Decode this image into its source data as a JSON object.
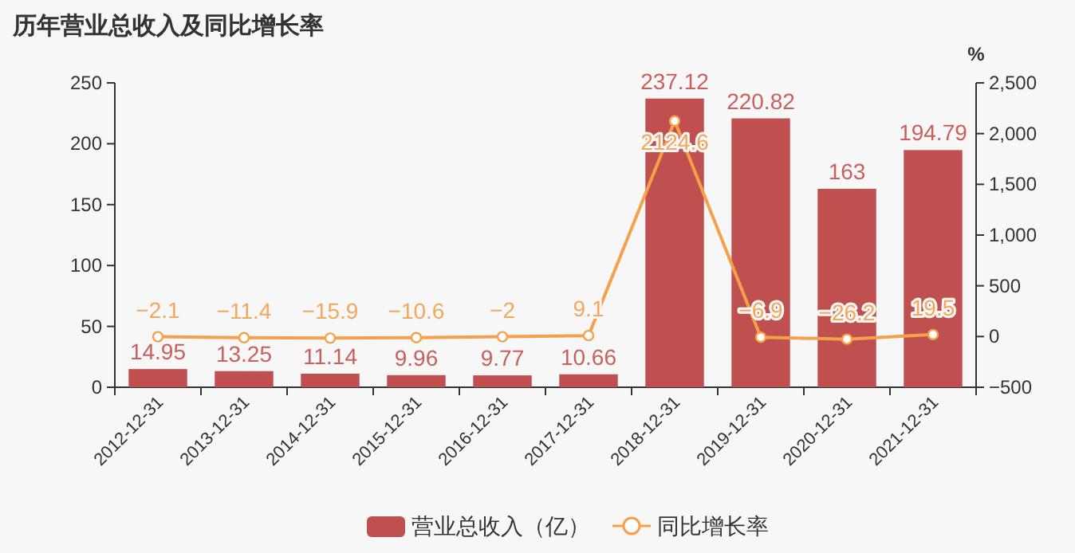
{
  "chart_data": {
    "type": "bar",
    "title": "历年营业总收入及同比增长率",
    "categories": [
      "2012-12-31",
      "2013-12-31",
      "2014-12-31",
      "2015-12-31",
      "2016-12-31",
      "2017-12-31",
      "2018-12-31",
      "2019-12-31",
      "2020-12-31",
      "2021-12-31"
    ],
    "series": [
      {
        "name": "营业总收入（亿）",
        "color": "#c0504f",
        "values": [
          14.95,
          13.25,
          11.14,
          9.96,
          9.77,
          10.66,
          237.12,
          220.82,
          163,
          194.79
        ]
      },
      {
        "name": "同比增长率",
        "type": "line",
        "axis": "y2",
        "color": "#f5a04b",
        "values": [
          -2.1,
          -11.4,
          -15.9,
          -10.6,
          -2,
          9.1,
          2124.6,
          -6.9,
          -26.2,
          19.5
        ]
      }
    ],
    "ylim": [
      0,
      250
    ],
    "yticks": [
      0,
      50,
      100,
      150,
      200,
      250
    ],
    "y2label": "%",
    "y2lim": [
      -500,
      2500
    ],
    "y2ticks": [
      {
        "value": -500,
        "label": "−500"
      },
      0,
      500,
      {
        "value": 1000,
        "label": "1,000"
      },
      {
        "value": 1500,
        "label": "1,500"
      },
      {
        "value": 2000,
        "label": "2,000"
      },
      {
        "value": 2500,
        "label": "2,500"
      }
    ],
    "data_labels": true,
    "legend": "bottom",
    "grid": false,
    "marker": "circle",
    "line_style": "solid"
  }
}
